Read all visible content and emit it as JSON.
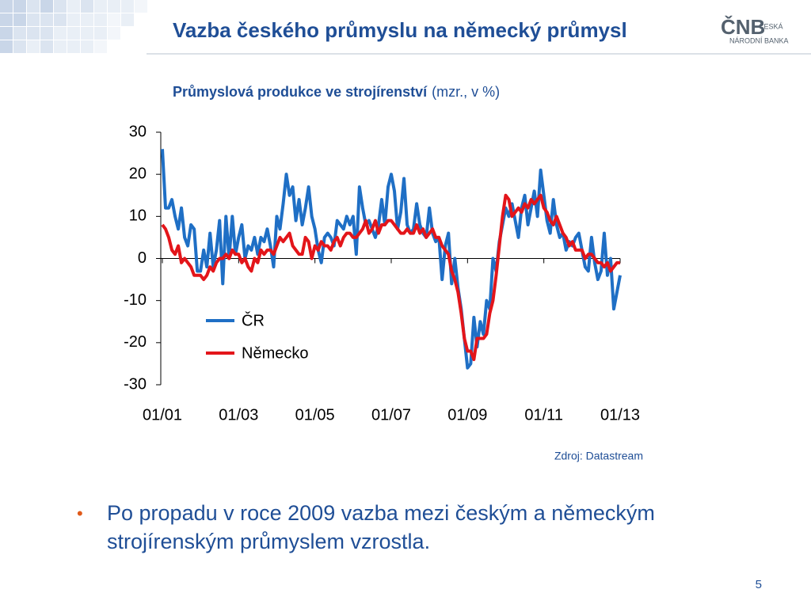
{
  "slide": {
    "title": "Vazba českého průmyslu na německý průmysl",
    "logo": {
      "mark": "ČNB",
      "line1": "ČESKÁ",
      "line2": "NÁRODNÍ BANKA"
    },
    "source": "Zdroj: Datastream",
    "bullet": "Po propadu v roce 2009 vazba mezi českým a německým strojírenským průmyslem vzrostla.",
    "page_number": "5"
  },
  "chart_data": {
    "type": "line",
    "title": "Průmyslová produkce ve strojírenství",
    "subtitle": "(mzr., v %)",
    "categories": [
      "01/01",
      null,
      null,
      null,
      null,
      null,
      null,
      null,
      null,
      null,
      null,
      null,
      null,
      null,
      null,
      null,
      null,
      null,
      null,
      null,
      null,
      null,
      null,
      null,
      "01/03",
      null,
      null,
      null,
      null,
      null,
      null,
      null,
      null,
      null,
      null,
      null,
      null,
      null,
      null,
      null,
      null,
      null,
      null,
      null,
      null,
      null,
      null,
      null,
      "01/05",
      null,
      null,
      null,
      null,
      null,
      null,
      null,
      null,
      null,
      null,
      null,
      null,
      null,
      null,
      null,
      null,
      null,
      null,
      null,
      null,
      null,
      null,
      null,
      "01/07",
      null,
      null,
      null,
      null,
      null,
      null,
      null,
      null,
      null,
      null,
      null,
      null,
      null,
      null,
      null,
      null,
      null,
      null,
      null,
      null,
      null,
      null,
      null,
      "01/09",
      null,
      null,
      null,
      null,
      null,
      null,
      null,
      null,
      null,
      null,
      null,
      null,
      null,
      null,
      null,
      null,
      null,
      null,
      null,
      null,
      null,
      null,
      null,
      "01/11",
      null,
      null,
      null,
      null,
      null,
      null,
      null,
      null,
      null,
      null,
      null,
      null,
      null,
      null,
      null,
      null,
      null,
      null,
      null,
      null,
      null,
      null,
      null,
      "01/13"
    ],
    "series": [
      {
        "name": "ČR",
        "color": "#1f6fc5",
        "values": [
          26,
          12,
          12,
          14,
          10,
          7,
          12,
          5,
          3,
          8,
          7,
          -3,
          -3,
          2,
          -2,
          6,
          -2,
          2,
          9,
          -6,
          10,
          0,
          10,
          1,
          5,
          8,
          0,
          3,
          2,
          5,
          1,
          5,
          4,
          7,
          3,
          -2,
          10,
          7,
          13,
          20,
          15,
          17,
          9,
          14,
          8,
          12,
          17,
          10,
          7,
          2,
          -1,
          5,
          6,
          5,
          3,
          9,
          8,
          7,
          10,
          8,
          10,
          1,
          17,
          12,
          8,
          9,
          7,
          5,
          8,
          14,
          8,
          17,
          20,
          16,
          7,
          11,
          19,
          8,
          6,
          7,
          13,
          8,
          6,
          5,
          12,
          6,
          4,
          5,
          -5,
          3,
          6,
          -6,
          0,
          -7,
          -12,
          -19,
          -26,
          -25,
          -14,
          -21,
          -15,
          -18,
          -10,
          -12,
          0,
          -3,
          4,
          8,
          12,
          10,
          13,
          9,
          5,
          12,
          15,
          8,
          12,
          16,
          10,
          21,
          15,
          9,
          6,
          14,
          8,
          5,
          6,
          2,
          4,
          3,
          5,
          6,
          2,
          -2,
          -3,
          5,
          -1,
          -5,
          -3,
          6,
          -4,
          0,
          -12,
          -8,
          -4
        ]
      },
      {
        "name": "Německo",
        "color": "#e3151a",
        "values": [
          8,
          7,
          5,
          2,
          1,
          3,
          -1,
          0,
          -1,
          -2,
          -4,
          -4,
          -4,
          -5,
          -4,
          -2,
          -3,
          -1,
          0,
          0,
          1,
          0,
          2,
          1,
          1,
          -1,
          0,
          -2,
          -3,
          0,
          -1,
          2,
          1,
          2,
          2,
          1,
          3,
          5,
          4,
          5,
          6,
          3,
          2,
          1,
          1,
          5,
          4,
          0,
          3,
          2,
          4,
          3,
          3,
          2,
          4,
          5,
          3,
          5,
          6,
          6,
          5,
          5,
          6,
          7,
          9,
          6,
          7,
          9,
          6,
          8,
          8,
          9,
          9,
          8,
          7,
          6,
          6,
          7,
          6,
          6,
          8,
          6,
          7,
          5,
          6,
          7,
          5,
          5,
          3,
          2,
          1,
          -3,
          -5,
          -8,
          -13,
          -19,
          -22,
          -22,
          -24,
          -19,
          -19,
          -19,
          -18,
          -13,
          -10,
          -4,
          3,
          10,
          15,
          14,
          10,
          11,
          12,
          11,
          13,
          12,
          14,
          13,
          14,
          15,
          12,
          11,
          9,
          8,
          10,
          8,
          6,
          5,
          3,
          4,
          2,
          2,
          2,
          0,
          1,
          1,
          0,
          -1,
          -1,
          -2,
          -1,
          -3,
          -2,
          -1,
          -1
        ]
      }
    ],
    "ylim": [
      -30,
      30
    ],
    "yticks": [
      30,
      20,
      10,
      0,
      -10,
      -20,
      -30
    ],
    "legend": "center"
  }
}
